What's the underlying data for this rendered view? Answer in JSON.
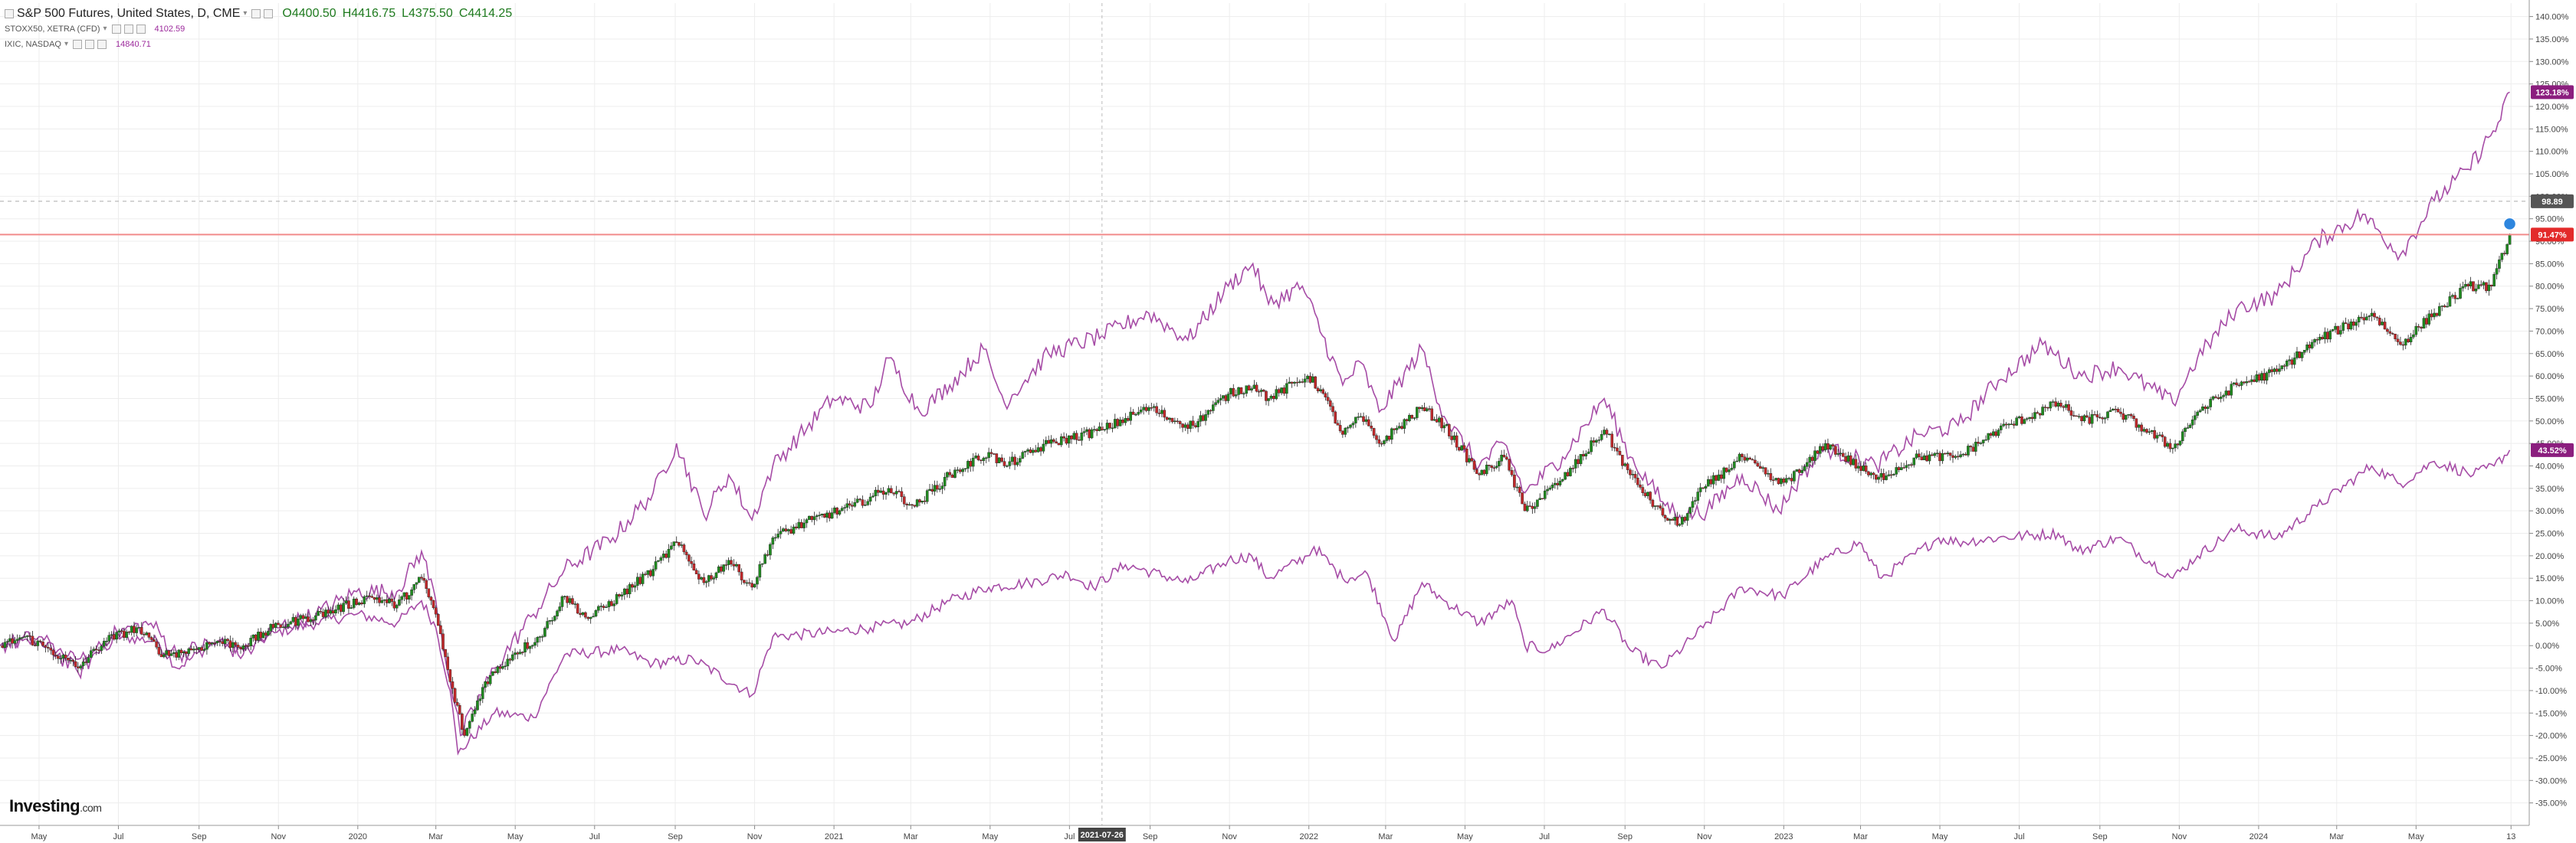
{
  "legend": {
    "main": {
      "name": "S&P 500 Futures, United States, D, CME",
      "open": "O4400.50",
      "high": "H4416.75",
      "low": "L4375.50",
      "close": "C4414.25"
    },
    "series2": {
      "name": "STOXX50, XETRA (CFD)",
      "value": "4102.59"
    },
    "series3": {
      "name": "IXIC, NASDAQ",
      "value": "14840.71"
    }
  },
  "logo": {
    "text": "Investing",
    "suffix": ".com"
  },
  "crosshair_label": "2021-07-26",
  "colors": {
    "up": "#1f8a1f",
    "down": "#c0282a",
    "line": "#a64ca6",
    "price_line": "#f28b8b",
    "grid": "#ededed"
  },
  "chart_data": {
    "type": "line",
    "y_unit": "%",
    "ylim": [
      -40,
      143
    ],
    "y_ticks": [
      "140.00%",
      "135.00%",
      "130.00%",
      "125.00%",
      "120.00%",
      "115.00%",
      "110.00%",
      "105.00%",
      "100.00%",
      "95.00%",
      "90.00%",
      "85.00%",
      "80.00%",
      "75.00%",
      "70.00%",
      "65.00%",
      "60.00%",
      "55.00%",
      "50.00%",
      "45.00%",
      "40.00%",
      "35.00%",
      "30.00%",
      "25.00%",
      "20.00%",
      "15.00%",
      "10.00%",
      "5.00%",
      "0.00%",
      "-5.00%",
      "-10.00%",
      "-15.00%",
      "-20.00%",
      "-25.00%",
      "-30.00%",
      "-35.00%"
    ],
    "x_ticks": [
      "May",
      "Jul",
      "Sep",
      "Nov",
      "2020",
      "Mar",
      "May",
      "Jul",
      "Sep",
      "Nov",
      "2021",
      "Mar",
      "May",
      "Jul",
      "Sep",
      "Nov",
      "2022",
      "Mar",
      "May",
      "Jul",
      "Sep",
      "Nov",
      "2023",
      "Mar",
      "May",
      "Jul",
      "Sep",
      "Nov",
      "2024",
      "Mar",
      "May",
      "13"
    ],
    "x_tick_dates": [
      "2019-05-01",
      "2019-07-01",
      "2019-09-01",
      "2019-11-01",
      "2020-01-01",
      "2020-03-01",
      "2020-05-01",
      "2020-07-01",
      "2020-09-01",
      "2020-11-01",
      "2021-01-01",
      "2021-03-01",
      "2021-05-01",
      "2021-07-01",
      "2021-09-01",
      "2021-11-01",
      "2022-01-01",
      "2022-03-01",
      "2022-05-01",
      "2022-07-01",
      "2022-09-01",
      "2022-11-01",
      "2023-01-01",
      "2023-03-01",
      "2023-05-01",
      "2023-07-01",
      "2023-09-01",
      "2023-11-01",
      "2024-01-01",
      "2024-03-01",
      "2024-05-01",
      "2024-07-13"
    ],
    "x_range": [
      "2019-04-01",
      "2024-07-27"
    ],
    "series": [
      {
        "name": "S&P 500 Futures, United States, D, CME",
        "style": "candles",
        "points": [
          [
            "2019-04-01",
            0
          ],
          [
            "2019-04-20",
            2
          ],
          [
            "2019-05-10",
            -1
          ],
          [
            "2019-05-31",
            -5
          ],
          [
            "2019-06-20",
            1
          ],
          [
            "2019-07-15",
            4
          ],
          [
            "2019-08-05",
            -2
          ],
          [
            "2019-08-26",
            -1
          ],
          [
            "2019-09-15",
            1
          ],
          [
            "2019-10-05",
            0
          ],
          [
            "2019-10-28",
            4
          ],
          [
            "2019-11-20",
            6
          ],
          [
            "2019-12-15",
            8
          ],
          [
            "2020-01-10",
            11
          ],
          [
            "2020-01-31",
            9
          ],
          [
            "2020-02-19",
            15
          ],
          [
            "2020-03-01",
            7
          ],
          [
            "2020-03-12",
            -8
          ],
          [
            "2020-03-23",
            -20
          ],
          [
            "2020-04-08",
            -8
          ],
          [
            "2020-04-29",
            -2
          ],
          [
            "2020-05-20",
            2
          ],
          [
            "2020-06-08",
            11
          ],
          [
            "2020-06-26",
            6
          ],
          [
            "2020-07-20",
            11
          ],
          [
            "2020-08-15",
            17
          ],
          [
            "2020-09-02",
            23
          ],
          [
            "2020-09-23",
            14
          ],
          [
            "2020-10-12",
            19
          ],
          [
            "2020-10-30",
            13
          ],
          [
            "2020-11-15",
            24
          ],
          [
            "2020-12-15",
            28
          ],
          [
            "2021-01-15",
            31
          ],
          [
            "2021-02-12",
            35
          ],
          [
            "2021-03-04",
            31
          ],
          [
            "2021-03-31",
            38
          ],
          [
            "2021-04-30",
            43
          ],
          [
            "2021-05-12",
            40
          ],
          [
            "2021-06-15",
            45
          ],
          [
            "2021-07-26",
            48
          ],
          [
            "2021-08-31",
            53
          ],
          [
            "2021-09-20",
            50
          ],
          [
            "2021-10-04",
            49
          ],
          [
            "2021-10-31",
            56
          ],
          [
            "2021-11-20",
            58
          ],
          [
            "2021-12-01",
            55
          ],
          [
            "2021-12-31",
            60
          ],
          [
            "2022-01-10",
            57
          ],
          [
            "2022-01-27",
            47
          ],
          [
            "2022-02-10",
            51
          ],
          [
            "2022-02-24",
            45
          ],
          [
            "2022-03-29",
            53
          ],
          [
            "2022-04-15",
            49
          ],
          [
            "2022-05-12",
            38
          ],
          [
            "2022-05-31",
            42
          ],
          [
            "2022-06-16",
            30
          ],
          [
            "2022-07-15",
            37
          ],
          [
            "2022-08-16",
            48
          ],
          [
            "2022-09-05",
            38
          ],
          [
            "2022-09-30",
            29
          ],
          [
            "2022-10-13",
            27
          ],
          [
            "2022-10-31",
            35
          ],
          [
            "2022-11-30",
            42
          ],
          [
            "2022-12-28",
            36
          ],
          [
            "2023-01-15",
            39
          ],
          [
            "2023-02-02",
            45
          ],
          [
            "2023-03-13",
            37
          ],
          [
            "2023-04-15",
            42
          ],
          [
            "2023-05-15",
            42
          ],
          [
            "2023-06-15",
            48
          ],
          [
            "2023-07-31",
            54
          ],
          [
            "2023-08-18",
            50
          ],
          [
            "2023-09-15",
            52
          ],
          [
            "2023-10-27",
            44
          ],
          [
            "2023-11-15",
            52
          ],
          [
            "2023-12-15",
            58
          ],
          [
            "2024-01-15",
            61
          ],
          [
            "2024-02-15",
            68
          ],
          [
            "2024-03-28",
            74
          ],
          [
            "2024-04-19",
            67
          ],
          [
            "2024-05-15",
            74
          ],
          [
            "2024-06-10",
            80
          ],
          [
            "2024-06-28",
            80
          ],
          [
            "2024-07-12",
            91.47
          ]
        ]
      },
      {
        "name": "STOXX50, XETRA (CFD)",
        "style": "line",
        "points": [
          [
            "2019-04-01",
            0
          ],
          [
            "2019-04-30",
            1
          ],
          [
            "2019-05-31",
            -3
          ],
          [
            "2019-06-30",
            2
          ],
          [
            "2019-07-31",
            1
          ],
          [
            "2019-08-15",
            -5
          ],
          [
            "2019-09-15",
            1
          ],
          [
            "2019-10-05",
            -1
          ],
          [
            "2019-10-31",
            3
          ],
          [
            "2019-11-30",
            5
          ],
          [
            "2019-12-31",
            7
          ],
          [
            "2020-01-31",
            5
          ],
          [
            "2020-02-19",
            10
          ],
          [
            "2020-03-01",
            4
          ],
          [
            "2020-03-12",
            -10
          ],
          [
            "2020-03-18",
            -24
          ],
          [
            "2020-04-15",
            -15
          ],
          [
            "2020-05-15",
            -16
          ],
          [
            "2020-06-08",
            -2
          ],
          [
            "2020-07-20",
            -1
          ],
          [
            "2020-08-15",
            -4
          ],
          [
            "2020-09-15",
            -3
          ],
          [
            "2020-10-30",
            -11
          ],
          [
            "2020-11-15",
            2
          ],
          [
            "2020-12-31",
            3
          ],
          [
            "2021-01-29",
            4
          ],
          [
            "2021-02-28",
            5
          ],
          [
            "2021-03-31",
            10
          ],
          [
            "2021-04-30",
            13
          ],
          [
            "2021-05-31",
            14
          ],
          [
            "2021-06-30",
            16
          ],
          [
            "2021-07-19",
            13
          ],
          [
            "2021-08-13",
            18
          ],
          [
            "2021-09-30",
            14
          ],
          [
            "2021-10-31",
            19
          ],
          [
            "2021-11-18",
            20
          ],
          [
            "2021-12-01",
            15
          ],
          [
            "2021-12-31",
            20
          ],
          [
            "2022-01-05",
            22
          ],
          [
            "2022-01-27",
            15
          ],
          [
            "2022-02-15",
            16
          ],
          [
            "2022-03-08",
            1
          ],
          [
            "2022-03-29",
            14
          ],
          [
            "2022-04-15",
            10
          ],
          [
            "2022-05-12",
            5
          ],
          [
            "2022-06-06",
            10
          ],
          [
            "2022-06-16",
            0
          ],
          [
            "2022-07-05",
            -1
          ],
          [
            "2022-08-16",
            8
          ],
          [
            "2022-09-05",
            -1
          ],
          [
            "2022-09-29",
            -5
          ],
          [
            "2022-10-31",
            4
          ],
          [
            "2022-11-30",
            13
          ],
          [
            "2022-12-31",
            11
          ],
          [
            "2023-01-31",
            19
          ],
          [
            "2023-02-28",
            23
          ],
          [
            "2023-03-17",
            15
          ],
          [
            "2023-04-30",
            24
          ],
          [
            "2023-05-15",
            23
          ],
          [
            "2023-06-15",
            24
          ],
          [
            "2023-07-31",
            25
          ],
          [
            "2023-08-15",
            21
          ],
          [
            "2023-09-15",
            24
          ],
          [
            "2023-10-27",
            15
          ],
          [
            "2023-11-15",
            20
          ],
          [
            "2023-12-15",
            26
          ],
          [
            "2024-01-15",
            24
          ],
          [
            "2024-02-15",
            31
          ],
          [
            "2024-03-28",
            40
          ],
          [
            "2024-04-19",
            36
          ],
          [
            "2024-05-15",
            41
          ],
          [
            "2024-06-14",
            38
          ],
          [
            "2024-06-30",
            40
          ],
          [
            "2024-07-12",
            43.52
          ]
        ]
      },
      {
        "name": "IXIC, NASDAQ",
        "style": "line",
        "points": [
          [
            "2019-04-01",
            0
          ],
          [
            "2019-05-01",
            2
          ],
          [
            "2019-05-31",
            -6
          ],
          [
            "2019-06-30",
            3
          ],
          [
            "2019-07-26",
            5
          ],
          [
            "2019-08-15",
            -2
          ],
          [
            "2019-09-15",
            1
          ],
          [
            "2019-10-05",
            -2
          ],
          [
            "2019-10-31",
            4
          ],
          [
            "2019-11-30",
            7
          ],
          [
            "2019-12-31",
            12
          ],
          [
            "2020-01-31",
            12
          ],
          [
            "2020-02-19",
            21
          ],
          [
            "2020-03-01",
            10
          ],
          [
            "2020-03-12",
            -8
          ],
          [
            "2020-03-20",
            -20
          ],
          [
            "2020-04-15",
            -5
          ],
          [
            "2020-05-15",
            7
          ],
          [
            "2020-06-08",
            17
          ],
          [
            "2020-07-15",
            24
          ],
          [
            "2020-08-15",
            34
          ],
          [
            "2020-09-02",
            45
          ],
          [
            "2020-09-23",
            29
          ],
          [
            "2020-10-12",
            38
          ],
          [
            "2020-10-30",
            28
          ],
          [
            "2020-11-15",
            40
          ],
          [
            "2020-12-31",
            55
          ],
          [
            "2021-01-29",
            53
          ],
          [
            "2021-02-12",
            64
          ],
          [
            "2021-03-08",
            52
          ],
          [
            "2021-03-31",
            58
          ],
          [
            "2021-04-26",
            66
          ],
          [
            "2021-05-12",
            54
          ],
          [
            "2021-06-15",
            65
          ],
          [
            "2021-07-26",
            69
          ],
          [
            "2021-08-31",
            74
          ],
          [
            "2021-09-30",
            68
          ],
          [
            "2021-10-31",
            80
          ],
          [
            "2021-11-19",
            85
          ],
          [
            "2021-12-01",
            76
          ],
          [
            "2021-12-27",
            80
          ],
          [
            "2022-01-27",
            58
          ],
          [
            "2022-02-10",
            63
          ],
          [
            "2022-02-24",
            52
          ],
          [
            "2022-03-29",
            66
          ],
          [
            "2022-04-15",
            51
          ],
          [
            "2022-05-12",
            40
          ],
          [
            "2022-05-31",
            45
          ],
          [
            "2022-06-16",
            34
          ],
          [
            "2022-07-15",
            42
          ],
          [
            "2022-08-16",
            55
          ],
          [
            "2022-09-05",
            42
          ],
          [
            "2022-09-30",
            32
          ],
          [
            "2022-10-13",
            29
          ],
          [
            "2022-11-03",
            30
          ],
          [
            "2022-11-30",
            38
          ],
          [
            "2022-12-28",
            30
          ],
          [
            "2023-01-15",
            38
          ],
          [
            "2023-02-02",
            44
          ],
          [
            "2023-03-13",
            40
          ],
          [
            "2023-04-15",
            47
          ],
          [
            "2023-05-15",
            49
          ],
          [
            "2023-06-15",
            59
          ],
          [
            "2023-07-19",
            67
          ],
          [
            "2023-08-18",
            60
          ],
          [
            "2023-09-15",
            62
          ],
          [
            "2023-10-27",
            54
          ],
          [
            "2023-11-15",
            64
          ],
          [
            "2023-12-15",
            75
          ],
          [
            "2024-01-15",
            78
          ],
          [
            "2024-02-15",
            90
          ],
          [
            "2024-03-21",
            96
          ],
          [
            "2024-04-19",
            87
          ],
          [
            "2024-05-15",
            99
          ],
          [
            "2024-06-10",
            106
          ],
          [
            "2024-07-05",
            117
          ],
          [
            "2024-07-12",
            123.18
          ]
        ]
      }
    ],
    "markers": {
      "crosshair_x": "2021-07-26",
      "dashed_level": 98.89,
      "price_line": 91.47
    },
    "right_labels": [
      {
        "text": "123.18%",
        "value": 123.18,
        "color": "#8b1e7e"
      },
      {
        "text": "98.89",
        "value": 98.89,
        "color": "#555555"
      },
      {
        "text": "91.47%",
        "value": 91.47,
        "color": "#e32a2a"
      },
      {
        "text": "43.52%",
        "value": 43.52,
        "color": "#8b1e7e"
      }
    ]
  }
}
